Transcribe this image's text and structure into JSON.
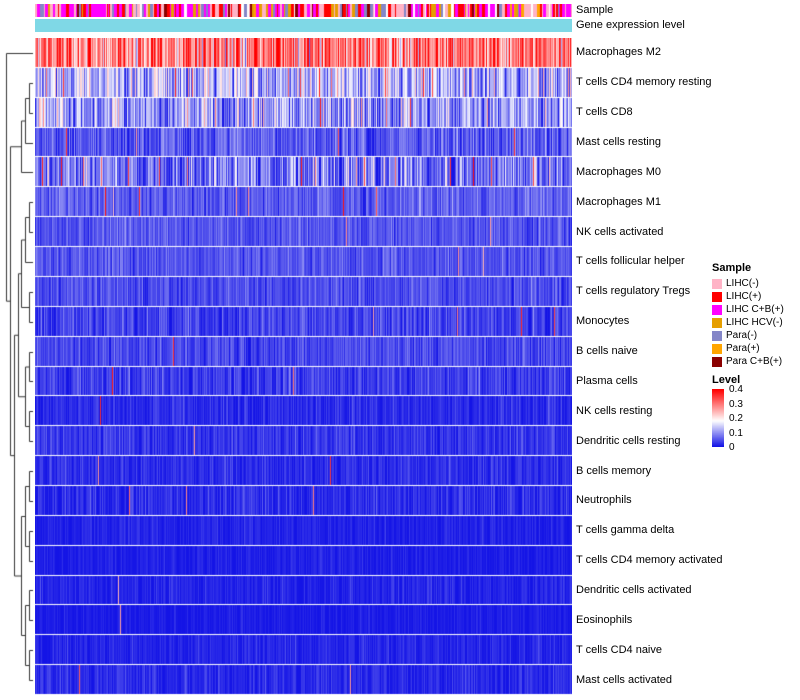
{
  "annotations": {
    "sample_label": "Sample",
    "expression_label": "Gene expression level",
    "expression_color": "#7FD8E6",
    "sample_color_weights": [
      {
        "color": "#FFB3C6",
        "w": 0.22
      },
      {
        "color": "#FF0000",
        "w": 0.2
      },
      {
        "color": "#FF00FF",
        "w": 0.22
      },
      {
        "color": "#E69F00",
        "w": 0.1
      },
      {
        "color": "#8486C8",
        "w": 0.09
      },
      {
        "color": "#FFA500",
        "w": 0.07
      },
      {
        "color": "#8B0000",
        "w": 0.05
      },
      {
        "color": "#FFFFFF",
        "w": 0.05
      }
    ]
  },
  "legend": {
    "sample": {
      "title": "Sample",
      "entries": [
        {
          "label": "LIHC(-)",
          "color": "#FFB3C6"
        },
        {
          "label": "LIHC(+)",
          "color": "#FF0000"
        },
        {
          "label": "LIHC C+B(+)",
          "color": "#FF00FF"
        },
        {
          "label": "LIHC HCV(-)",
          "color": "#E69F00"
        },
        {
          "label": "Para(-)",
          "color": "#8486C8"
        },
        {
          "label": "Para(+)",
          "color": "#FFA500"
        },
        {
          "label": "Para C+B(+)",
          "color": "#8B0000"
        }
      ]
    },
    "level": {
      "title": "Level",
      "ticks": [
        "0.4",
        "0.3",
        "0.2",
        "0.1",
        "0"
      ]
    }
  },
  "chart_data": {
    "type": "heatmap",
    "rows": [
      "Macrophages M2",
      "T cells CD4 memory resting",
      "T cells CD8",
      "Mast cells resting",
      "Macrophages M0",
      "Macrophages M1",
      "NK cells activated",
      "T cells follicular helper",
      "T cells regulatory Tregs",
      "Monocytes",
      "B cells naive",
      "Plasma cells",
      "NK cells resting",
      "Dendritic cells resting",
      "B cells memory",
      "Neutrophils",
      "T cells gamma delta",
      "T cells CD4 memory activated",
      "Dendritic cells activated",
      "Eosinophils",
      "T cells CD4 naive",
      "Mast cells activated"
    ],
    "row_mean_levels": [
      0.3,
      0.12,
      0.1,
      0.055,
      0.07,
      0.055,
      0.05,
      0.048,
      0.045,
      0.035,
      0.04,
      0.03,
      0.018,
      0.025,
      0.02,
      0.018,
      0.01,
      0.008,
      0.012,
      0.006,
      0.012,
      0.016
    ],
    "row_sd_levels": [
      0.08,
      0.06,
      0.055,
      0.03,
      0.05,
      0.022,
      0.02,
      0.02,
      0.02,
      0.022,
      0.02,
      0.022,
      0.015,
      0.018,
      0.015,
      0.018,
      0.01,
      0.009,
      0.012,
      0.008,
      0.012,
      0.014
    ],
    "row_spike_prob": [
      0.0,
      0.05,
      0.04,
      0.01,
      0.03,
      0.008,
      0.005,
      0.005,
      0.005,
      0.004,
      0.004,
      0.004,
      0.002,
      0.003,
      0.002,
      0.003,
      0.001,
      0.001,
      0.002,
      0.001,
      0.002,
      0.002
    ],
    "n_columns": 537,
    "value_range": [
      0,
      0.4
    ],
    "colormap_stops": [
      {
        "value": 0,
        "color": "#1414E6"
      },
      {
        "value": 0.18,
        "color": "#FFFFFF"
      },
      {
        "value": 0.4,
        "color": "#FF0000"
      }
    ],
    "title": "",
    "legend_position": "right",
    "row_dendrogram": true
  }
}
